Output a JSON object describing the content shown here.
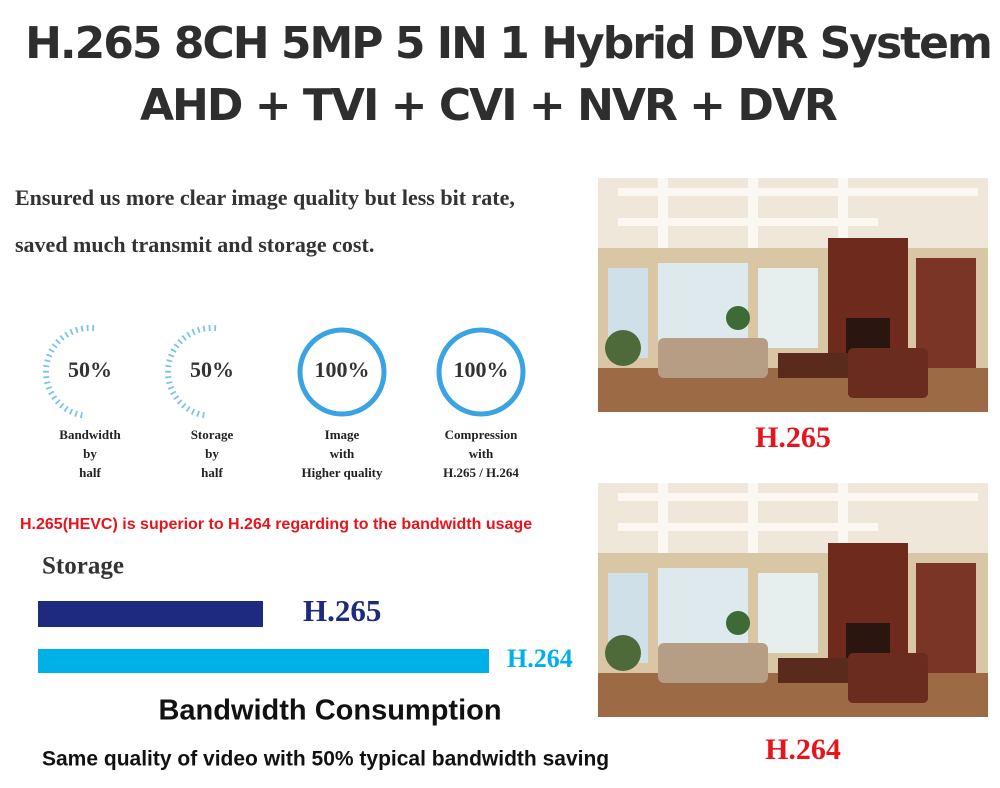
{
  "header": {
    "title": "H.265 8CH 5MP 5 IN 1 Hybrid DVR System",
    "subtitle": "AHD + TVI + CVI + NVR + DVR"
  },
  "intro": {
    "lines": [
      "Ensured us more clear image quality but less bit rate,",
      "saved much transmit and storage cost."
    ]
  },
  "features": [
    {
      "value": "50%",
      "label": [
        "Bandwidth",
        "by",
        "half"
      ]
    },
    {
      "value": "50%",
      "label": [
        "Storage",
        "by",
        "half"
      ]
    },
    {
      "value": "100%",
      "label": [
        "Image",
        "with",
        "Higher quality"
      ]
    },
    {
      "value": "100%",
      "label": [
        "Compression",
        "with",
        "H.265 / H.264"
      ]
    }
  ],
  "note": "H.265(HEVC) is superior to H.264 regarding to the bandwidth usage",
  "storage": {
    "title": "Storage",
    "bars": [
      {
        "label": "H.265"
      },
      {
        "label": "H.264"
      }
    ]
  },
  "footer": {
    "title": "Bandwidth Consumption",
    "subtitle": "Same quality of video with 50% typical bandwidth saving"
  },
  "photos": [
    {
      "caption": "H.265"
    },
    {
      "caption": "H.264"
    }
  ]
}
